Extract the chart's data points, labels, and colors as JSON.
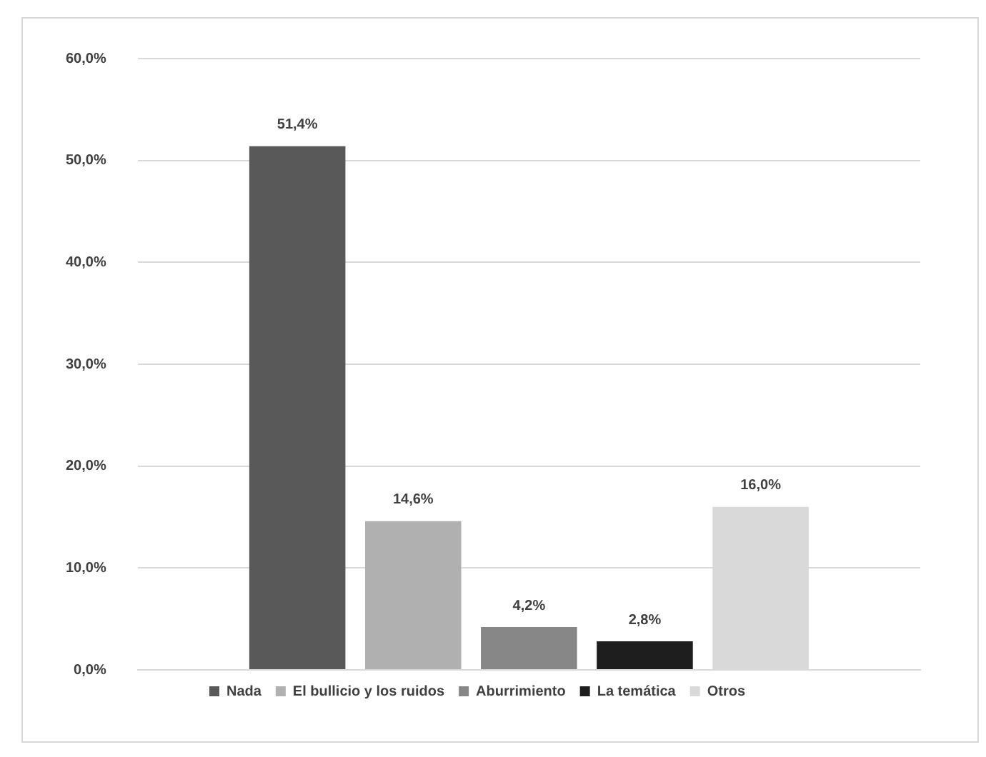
{
  "chart_data": {
    "type": "bar",
    "categories": [
      null
    ],
    "series": [
      {
        "name": "Nada",
        "color": "#595959",
        "values": [
          51.4
        ],
        "value_labels": [
          "51,4%"
        ]
      },
      {
        "name": "El bullicio y los ruidos",
        "color": "#b0b0b0",
        "values": [
          14.6
        ],
        "value_labels": [
          "14,6%"
        ]
      },
      {
        "name": "Aburrimiento",
        "color": "#878787",
        "values": [
          4.2
        ],
        "value_labels": [
          "4,2%"
        ]
      },
      {
        "name": "La temática",
        "color": "#1e1e1e",
        "values": [
          2.8
        ],
        "value_labels": [
          "2,8%"
        ]
      },
      {
        "name": "Otros",
        "color": "#d9d9d9",
        "values": [
          16.0
        ],
        "value_labels": [
          "16,0%"
        ]
      }
    ],
    "ylim": [
      0,
      60
    ],
    "yticks": [
      {
        "value": 0,
        "label": "0,0%"
      },
      {
        "value": 10,
        "label": "10,0%"
      },
      {
        "value": 20,
        "label": "20,0%"
      },
      {
        "value": 30,
        "label": "30,0%"
      },
      {
        "value": 40,
        "label": "40,0%"
      },
      {
        "value": 50,
        "label": "50,0%"
      },
      {
        "value": 60,
        "label": "60,0%"
      }
    ],
    "grid": "y",
    "legend": "bottom"
  }
}
